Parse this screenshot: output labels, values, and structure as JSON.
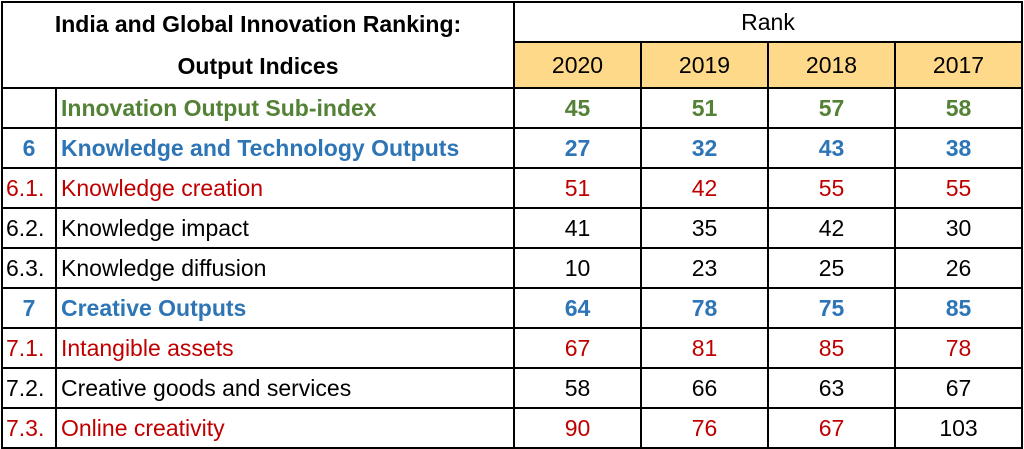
{
  "table": {
    "title_line1": "India and Global Innovation Ranking:",
    "title_line2": "Output Indices",
    "rank_header": "Rank",
    "years": [
      "2020",
      "2019",
      "2018",
      "2017"
    ],
    "colors": {
      "green": "#538135",
      "blue": "#2e75b6",
      "red": "#c00000",
      "black": "#000000",
      "year_header_bg": "#ffd98a"
    },
    "rows": [
      {
        "code": "",
        "label": "Innovation Output Sub-index",
        "values": [
          "45",
          "51",
          "57",
          "58"
        ],
        "style": "bold",
        "label_color": "green",
        "value_colors": [
          "green",
          "green",
          "green",
          "green"
        ]
      },
      {
        "code": "6",
        "label": "Knowledge and Technology Outputs",
        "values": [
          "27",
          "32",
          "43",
          "38"
        ],
        "style": "bold",
        "label_color": "blue",
        "value_colors": [
          "blue",
          "blue",
          "blue",
          "blue"
        ]
      },
      {
        "code": "6.1.",
        "label": "Knowledge creation",
        "values": [
          "51",
          "42",
          "55",
          "55"
        ],
        "style": "normal",
        "label_color": "red",
        "value_colors": [
          "red",
          "red",
          "red",
          "red"
        ]
      },
      {
        "code": "6.2.",
        "label": "Knowledge impact",
        "values": [
          "41",
          "35",
          "42",
          "30"
        ],
        "style": "normal",
        "label_color": "black",
        "value_colors": [
          "black",
          "black",
          "black",
          "black"
        ]
      },
      {
        "code": "6.3.",
        "label": "Knowledge diffusion",
        "values": [
          "10",
          "23",
          "25",
          "26"
        ],
        "style": "normal",
        "label_color": "black",
        "value_colors": [
          "black",
          "black",
          "black",
          "black"
        ]
      },
      {
        "code": "7",
        "label": "Creative Outputs",
        "values": [
          "64",
          "78",
          "75",
          "85"
        ],
        "style": "bold",
        "label_color": "blue",
        "value_colors": [
          "blue",
          "blue",
          "blue",
          "blue"
        ]
      },
      {
        "code": "7.1.",
        "label": "Intangible assets",
        "values": [
          "67",
          "81",
          "85",
          "78"
        ],
        "style": "normal",
        "label_color": "red",
        "value_colors": [
          "red",
          "red",
          "red",
          "red"
        ]
      },
      {
        "code": "7.2.",
        "label": "Creative goods and services",
        "values": [
          "58",
          "66",
          "63",
          "67"
        ],
        "style": "normal",
        "label_color": "black",
        "value_colors": [
          "black",
          "black",
          "black",
          "black"
        ]
      },
      {
        "code": "7.3.",
        "label": "Online creativity",
        "values": [
          "90",
          "76",
          "67",
          "103"
        ],
        "style": "normal",
        "label_color": "red",
        "value_colors": [
          "red",
          "red",
          "red",
          "black"
        ]
      }
    ]
  }
}
